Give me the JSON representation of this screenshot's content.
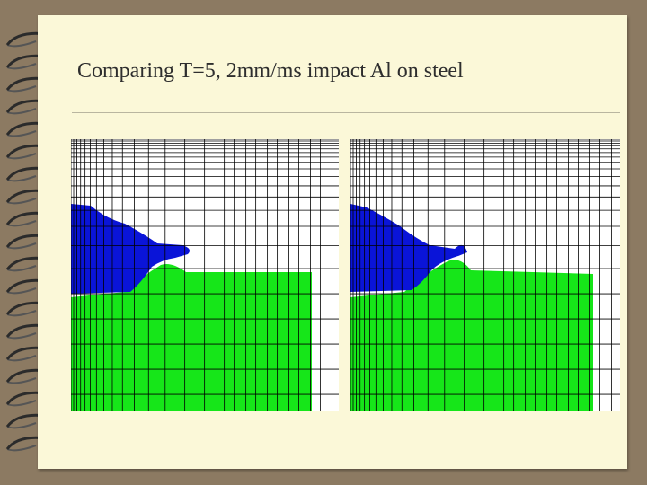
{
  "slide": {
    "title": "Comparing T=5, 2mm/ms impact Al on steel"
  },
  "colors": {
    "background": "#8c7a62",
    "page": "#fbf8d8",
    "aluminum_projectile": "#0a14d8",
    "steel_target": "#16e619",
    "mesh_lines": "#000000",
    "binding_rings": "#2b2b2b"
  },
  "panels": [
    {
      "name": "simulation-left",
      "icon": "mesh-simulation"
    },
    {
      "name": "simulation-right",
      "icon": "mesh-simulation"
    }
  ]
}
